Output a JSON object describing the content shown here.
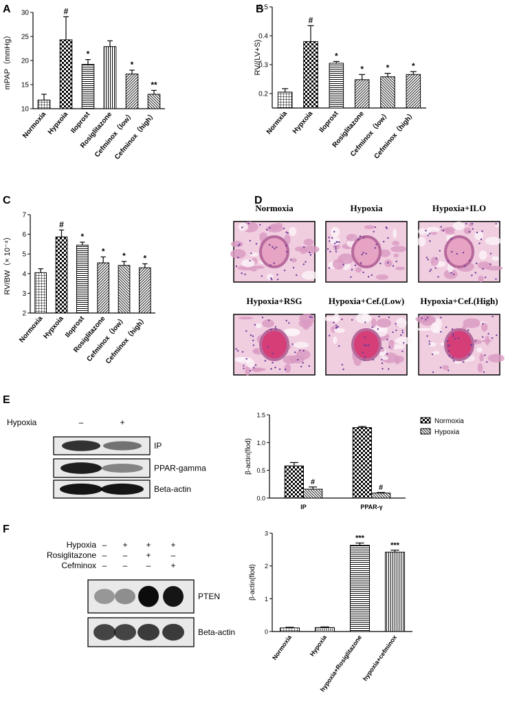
{
  "panel_labels": [
    "A",
    "B",
    "C",
    "D",
    "E",
    "F"
  ],
  "chart_data": [
    {
      "type": "bar",
      "ylabel": "mPAP（mmHg）",
      "categories": [
        "Normoxia",
        "Hypxoia",
        "Iloprost",
        "Rosiglitazone",
        "Cefminox（low）",
        "Cefminox（high）"
      ],
      "series": [
        {
          "color": "#000000",
          "values": [
            11.8,
            24.3,
            19.2,
            22.9,
            17.2,
            13.0
          ],
          "errors": [
            1.2,
            4.8,
            1.0,
            1.2,
            0.8,
            0.8
          ],
          "annotations": [
            null,
            "#",
            "*",
            null,
            "*",
            "**"
          ]
        }
      ],
      "ylim": [
        10,
        30
      ],
      "yticks": [
        10,
        15,
        20,
        25,
        30
      ]
    },
    {
      "type": "bar",
      "ylabel": "RV/(LV+S)",
      "categories": [
        "Normxia",
        "Hypxoia",
        "Iloprost",
        "Rosiglitazone",
        "Cefminox（low）",
        "Cefminox（high）"
      ],
      "series": [
        {
          "color": "#000000",
          "values": [
            0.205,
            0.38,
            0.305,
            0.248,
            0.258,
            0.266
          ],
          "errors": [
            0.012,
            0.055,
            0.006,
            0.018,
            0.012,
            0.01
          ],
          "annotations": [
            null,
            "#",
            "*",
            "*",
            "*",
            "*"
          ]
        }
      ],
      "ylim": [
        0.15,
        0.5
      ],
      "yticks": [
        0.2,
        0.3,
        0.4,
        0.5
      ]
    },
    {
      "type": "bar",
      "ylabel": "RV/BW（× 10⁻⁴）",
      "categories": [
        "Normoxia",
        "Hypxoia",
        "Iloprost",
        "Rosiglitazone",
        "Cefminox（low）",
        "Cefminox（high）"
      ],
      "series": [
        {
          "color": "#000000",
          "values": [
            4.05,
            5.87,
            5.45,
            4.55,
            4.42,
            4.3
          ],
          "errors": [
            0.2,
            0.35,
            0.15,
            0.3,
            0.2,
            0.2
          ],
          "annotations": [
            null,
            "#",
            "*",
            "*",
            "*",
            "*"
          ]
        }
      ],
      "ylim": [
        2,
        7
      ],
      "yticks": [
        2,
        3,
        4,
        5,
        6,
        7
      ]
    },
    {
      "type": "bar",
      "ylabel": "β-actin(flod)",
      "legend": "top-right",
      "categories": [
        "IP",
        "PPAR-γ"
      ],
      "series": [
        {
          "name": "Normoxia",
          "color": "#000000",
          "values": [
            0.58,
            1.27
          ],
          "errors": [
            0.06,
            0.02
          ],
          "annotations": [
            null,
            null
          ]
        },
        {
          "name": "Hypoxia",
          "color": "#000000",
          "values": [
            0.16,
            0.09
          ],
          "errors": [
            0.04,
            0.01
          ],
          "annotations": [
            "#",
            "#"
          ]
        }
      ],
      "ylim": [
        0,
        1.5
      ],
      "yticks": [
        {
          "value": 0,
          "label": "0.0"
        },
        0.5,
        {
          "value": 1,
          "label": "1.0"
        },
        1.5
      ]
    },
    {
      "type": "bar",
      "ylabel": "β-actin(flod)",
      "categories": [
        "Normoxia",
        "Hypoxia",
        "hypoxia+Rosiglitazone",
        "hypoxia+cefminox"
      ],
      "series": [
        {
          "color": "#000000",
          "values": [
            0.11,
            0.12,
            2.63,
            2.42
          ],
          "errors": [
            0.02,
            0.02,
            0.07,
            0.06
          ],
          "annotations": [
            null,
            null,
            "***",
            "***"
          ]
        }
      ],
      "ylim": [
        0,
        3
      ],
      "yticks": [
        0,
        1,
        2,
        3
      ]
    }
  ],
  "histology": {
    "labels": [
      "Normoxia",
      "Hypoxia",
      "Hypoxia+ILO",
      "Hypoxia+RSG",
      "Hypoxia+Cef.(Low)",
      "Hypoxia+Cef.(High)"
    ]
  },
  "blot_e": {
    "conditions": [
      {
        "name": "Hypoxia",
        "marks": [
          "–",
          "+"
        ]
      }
    ],
    "bands": [
      "IP",
      "PPAR-gamma",
      "Beta-actin"
    ]
  },
  "blot_f": {
    "conditions": [
      {
        "name": "Hypoxia",
        "marks": [
          "–",
          "+",
          "+",
          "+"
        ]
      },
      {
        "name": "Rosiglitazone",
        "marks": [
          "–",
          "–",
          "+",
          "–"
        ]
      },
      {
        "name": "Cefminox",
        "marks": [
          "–",
          "–",
          "–",
          "+"
        ]
      }
    ],
    "bands": [
      "PTEN",
      "Beta-actin"
    ]
  }
}
